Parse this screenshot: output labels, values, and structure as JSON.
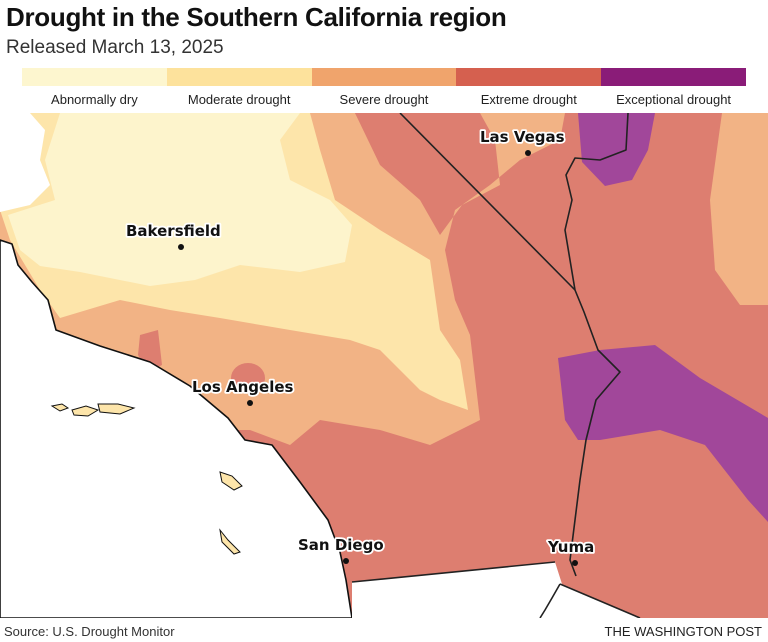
{
  "title": "Drought in the Southern California region",
  "subtitle": "Released March 13, 2025",
  "legend": [
    {
      "label": "Abnormally dry",
      "color": "#fdf6cf"
    },
    {
      "label": "Moderate drought",
      "color": "#fde29c"
    },
    {
      "label": "Severe drought",
      "color": "#f0a46c"
    },
    {
      "label": "Extreme drought",
      "color": "#d5604f"
    },
    {
      "label": "Exceptional drought",
      "color": "#8a1c78"
    }
  ],
  "map_colors": {
    "abnormally_dry": "#fdf4cc",
    "moderate": "#fde5aa",
    "severe": "#f2b385",
    "extreme": "#dd7e70",
    "exceptional": "#a1479a"
  },
  "cities": [
    {
      "name": "Las Vegas"
    },
    {
      "name": "Bakersfield"
    },
    {
      "name": "Los Angeles"
    },
    {
      "name": "San Diego"
    },
    {
      "name": "Yuma"
    }
  ],
  "source": "Source: U.S. Drought Monitor",
  "credit": "THE WASHINGTON POST"
}
